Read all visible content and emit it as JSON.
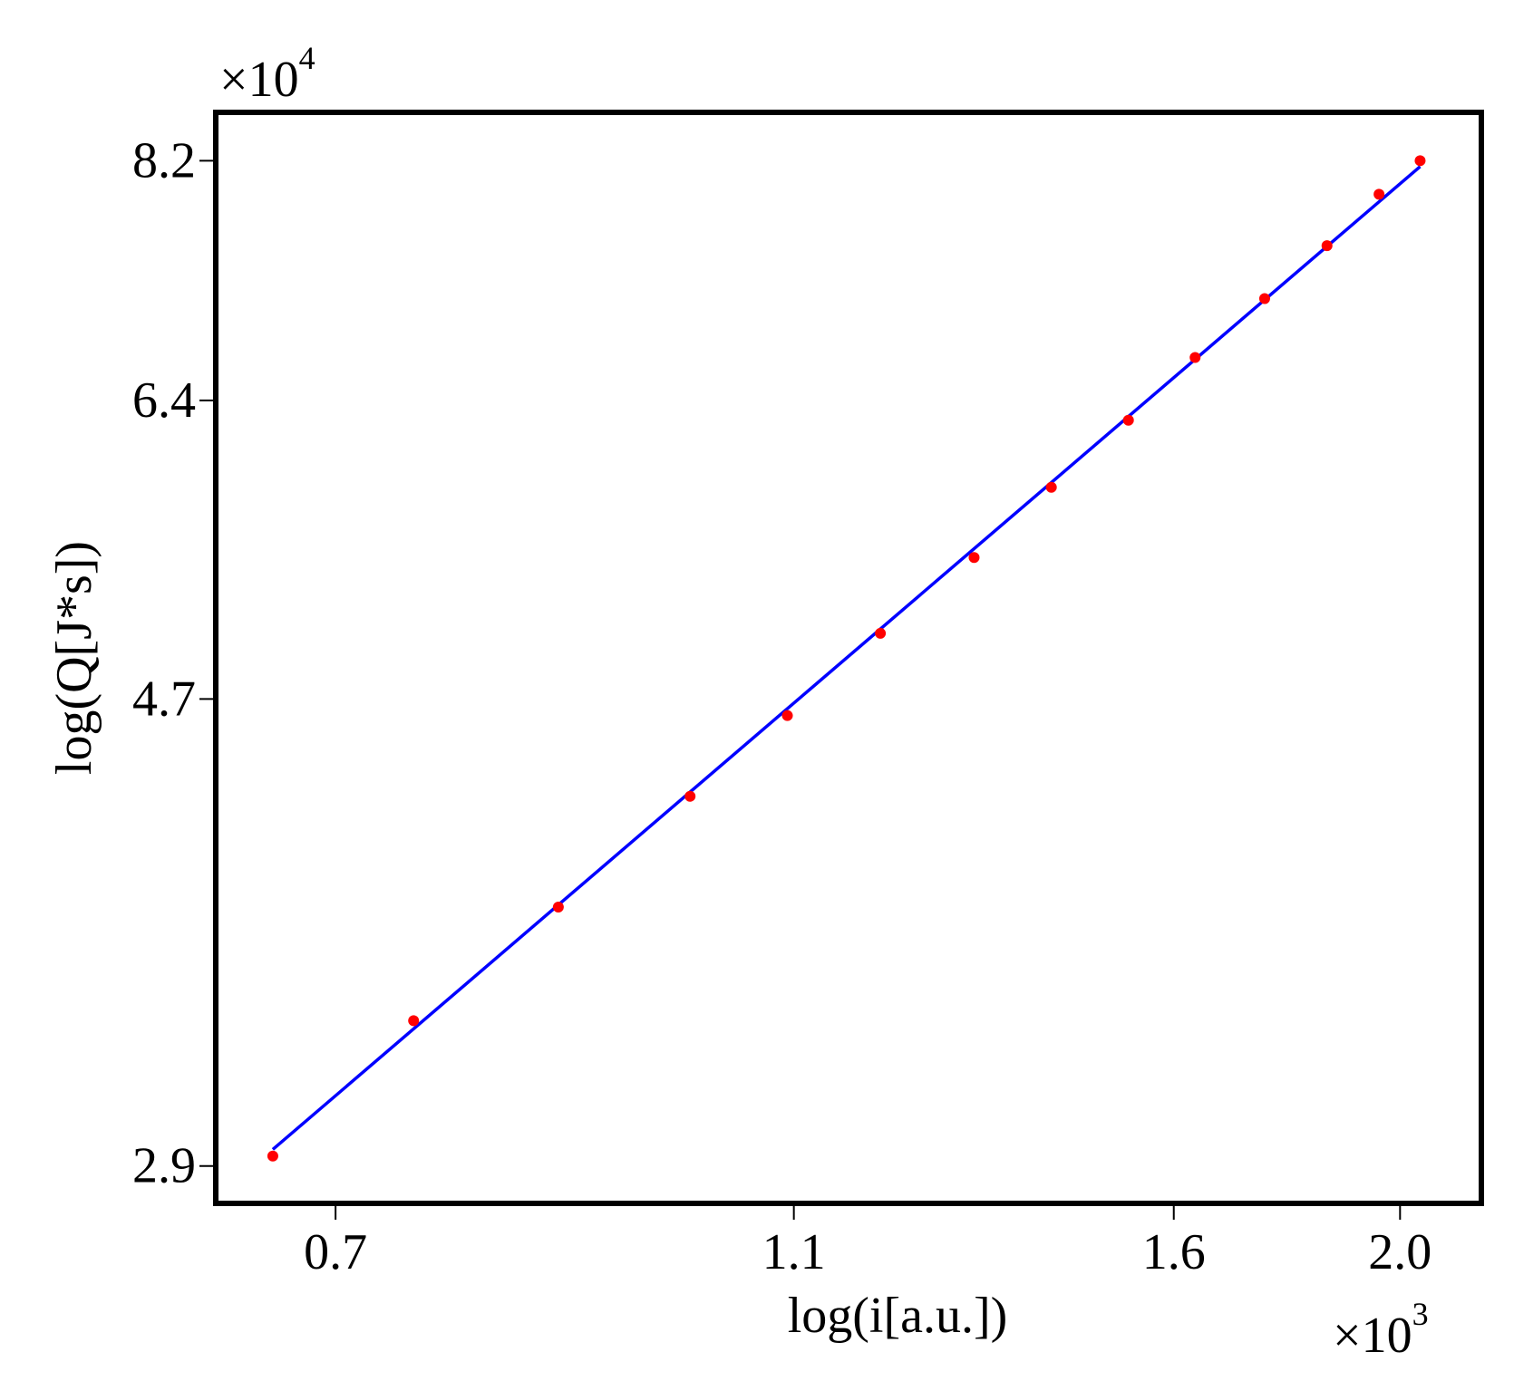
{
  "chart_data": {
    "type": "scatter",
    "x_label": "log(i[a.u.])",
    "y_label": "log(Q[J*s])",
    "x_multiplier": {
      "base": "×10",
      "exponent": "3"
    },
    "y_multiplier": {
      "base": "×10",
      "exponent": "4"
    },
    "xscale": "log",
    "yscale": "log",
    "xlim": [
      0.622,
      2.167
    ],
    "ylim": [
      2.79,
      8.62
    ],
    "xticks": [
      0.7,
      1.1,
      1.6,
      {
        "value": 2.0,
        "label": "2.0"
      }
    ],
    "yticks": [
      8.2,
      6.4,
      4.7,
      2.9
    ],
    "grid": false,
    "series": [
      {
        "style": "points",
        "color": "#ff0000",
        "x": [
          0.658,
          0.756,
          0.872,
          0.993,
          1.093,
          1.198,
          1.314,
          1.418,
          1.53,
          1.634,
          1.75,
          1.861,
          1.959,
          2.04
        ],
        "values": [
          2.93,
          3.37,
          3.79,
          4.25,
          4.62,
          5.03,
          5.44,
          5.85,
          6.27,
          6.69,
          7.11,
          7.51,
          7.92,
          8.2
        ]
      },
      {
        "style": "line",
        "color": "#0000ff",
        "x": [
          0.658,
          2.04
        ],
        "values": [
          2.95,
          8.15
        ]
      }
    ]
  }
}
